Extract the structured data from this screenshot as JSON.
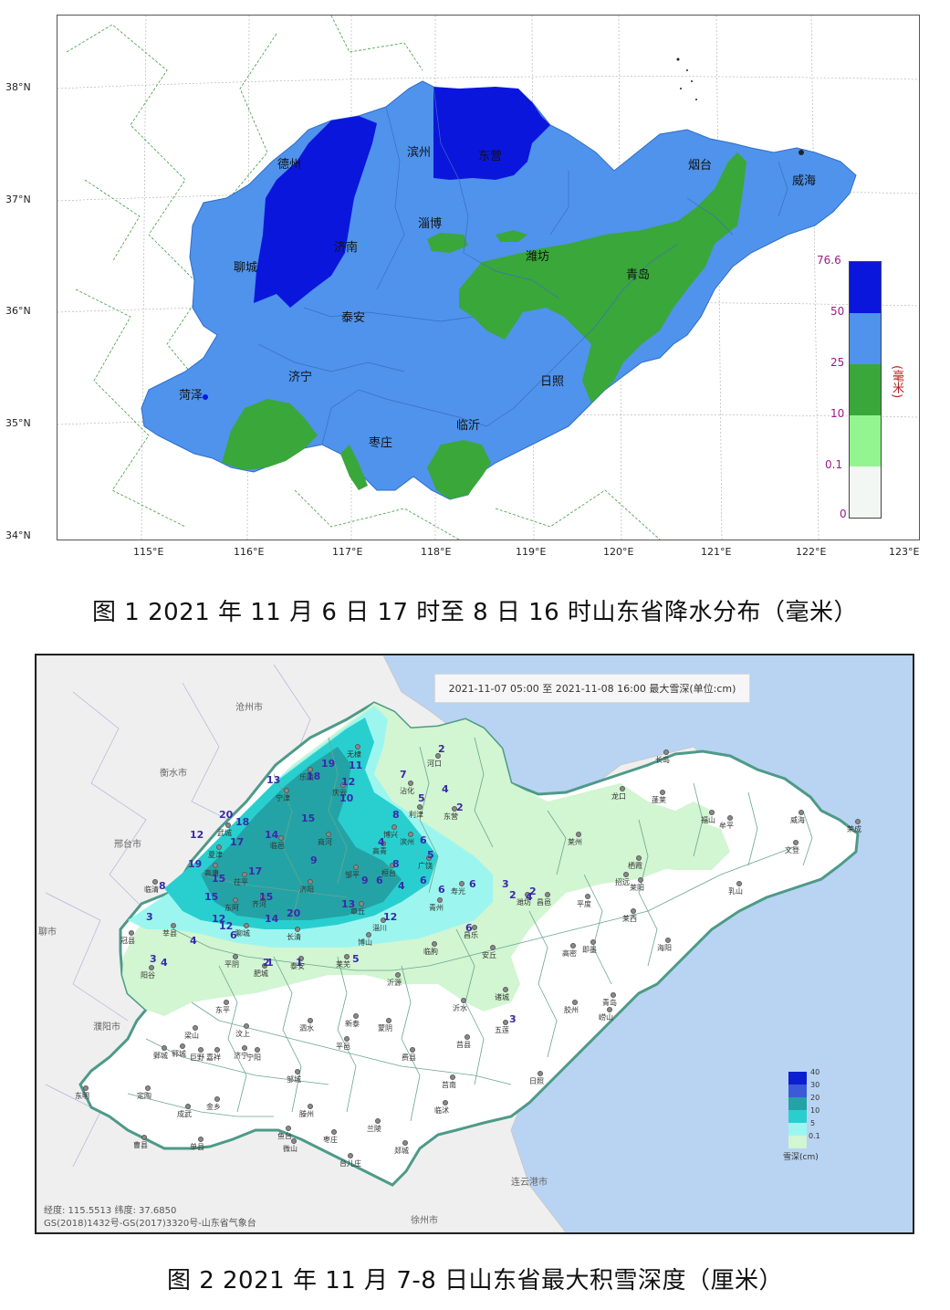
{
  "figure1": {
    "lat_labels": [
      "38°N",
      "37°N",
      "36°N",
      "35°N",
      "34°N"
    ],
    "lon_labels": [
      "115°E",
      "116°E",
      "117°E",
      "118°E",
      "119°E",
      "120°E",
      "121°E",
      "122°E",
      "123°E"
    ],
    "cities": [
      "德州",
      "滨州",
      "东营",
      "烟台",
      "威海",
      "淄博",
      "济南",
      "聊城",
      "潍坊",
      "青岛",
      "泰安",
      "济宁",
      "菏泽",
      "日照",
      "临沂",
      "枣庄"
    ],
    "legend": {
      "unit": "(毫米)",
      "ticks": [
        "76.6",
        "50",
        "25",
        "10",
        "0.1",
        "0"
      ],
      "colors": [
        "#0b16dc",
        "#4f93ec",
        "#3aa73a",
        "#93f58f",
        "#f3f7f3"
      ]
    },
    "caption": "图 1 2021 年 11 月 6 日 17 时至 8 日 16 时山东省降水分布（毫米）"
  },
  "figure2": {
    "title": "2021-11-07 05:00 至 2021-11-08 16:00 最大雪深(单位:cm)",
    "coords": "经度: 115.5513   纬度: 37.6850",
    "gs": "GS(2018)1432号-GS(2017)3320号-山东省气象台",
    "outside_cities": [
      "沧州市",
      "衡水市",
      "邢台市",
      "聊市",
      "濮阳市",
      "连云港市",
      "徐州市"
    ],
    "station_labels": [
      "无棣",
      "河口",
      "乐陵",
      "庆云",
      "宁津",
      "沾化",
      "利津",
      "东营",
      "武城",
      "夏津",
      "临邑",
      "滨州",
      "广饶",
      "长岛",
      "龙口",
      "蓬莱",
      "福山",
      "牟平",
      "威海",
      "荣成",
      "文登",
      "乳山",
      "莱阳",
      "莱西",
      "平度",
      "高密",
      "诸城",
      "五莲",
      "日照",
      "莒县",
      "沂水",
      "沂源",
      "蒙阴",
      "平邑",
      "费县",
      "兰陵",
      "郯城",
      "莒南",
      "临沭",
      "邹城",
      "滕州",
      "枣庄",
      "台儿庄",
      "微山",
      "鱼台",
      "单县",
      "成武",
      "曹县",
      "定陶",
      "东明",
      "鄄城",
      "郓城",
      "巨野",
      "嘉祥",
      "金乡",
      "济宁",
      "汶上",
      "宁阳",
      "新泰",
      "泗水",
      "梁山",
      "东平",
      "平阴",
      "肥城",
      "泰安",
      "莱芜",
      "长清",
      "章丘",
      "淄川",
      "博山",
      "临朐",
      "安丘",
      "昌乐",
      "青州",
      "寿光",
      "潍坊",
      "昌邑",
      "胶州",
      "即墨",
      "青岛",
      "崂山",
      "海阳",
      "招远",
      "栖霞",
      "莱州",
      "冠县",
      "阳谷",
      "莘县",
      "临清",
      "高唐",
      "茌平",
      "东阿",
      "聊城",
      "齐河",
      "济阳",
      "商河",
      "邹平",
      "桓台",
      "高青",
      "博兴"
    ],
    "snow_values": [
      "19",
      "11",
      "18",
      "12",
      "13",
      "10",
      "7",
      "2",
      "4",
      "2",
      "20",
      "18",
      "15",
      "5",
      "8",
      "12",
      "17",
      "14",
      "9",
      "4",
      "8",
      "6",
      "5",
      "19",
      "15",
      "17",
      "9",
      "6",
      "4",
      "6",
      "15",
      "15",
      "13",
      "6",
      "6",
      "8",
      "12",
      "14",
      "20",
      "12",
      "3",
      "2",
      "12",
      "4",
      "6",
      "2",
      "3",
      "4",
      "2",
      "1",
      "5",
      "3",
      "1",
      "6",
      "4",
      "3"
    ],
    "legend": {
      "title": "雪深(cm)",
      "ticks": [
        "40",
        "30",
        "20",
        "10",
        "5",
        "0.1"
      ],
      "colors": [
        "#0b1fd0",
        "#3b5ad8",
        "#24a3a6",
        "#29cfcf",
        "#9cf6ef",
        "#d2f5d2"
      ]
    },
    "caption": "图 2 2021 年 11 月 7-8 日山东省最大积雪深度（厘米）"
  }
}
